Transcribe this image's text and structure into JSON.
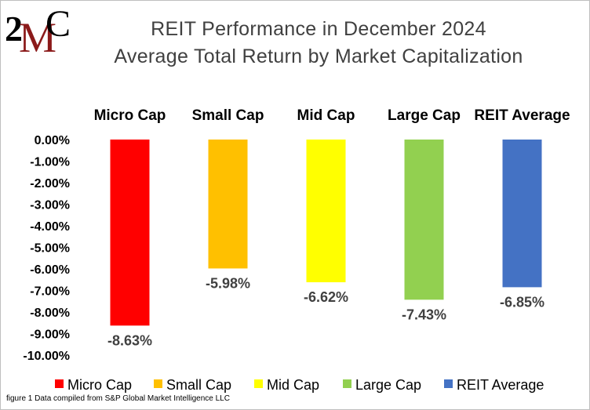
{
  "logo": {
    "text_2": "2",
    "text_m": "M",
    "text_c": "C",
    "colors": {
      "ink": "#000000",
      "accent": "#8b1a1a"
    }
  },
  "title_line1": "REIT Performance  in December 2024",
  "title_line2": "Average Total Return by Market Capitalization",
  "caption": "figure 1 Data compiled from S&P Global Market Intelligence LLC",
  "chart_data": {
    "type": "bar",
    "title": "REIT Performance  in December 2024 Average Total Return by Market Capitalization",
    "categories": [
      "Micro Cap",
      "Small Cap",
      "Mid Cap",
      "Large Cap",
      "REIT Average"
    ],
    "values": [
      -8.63,
      -5.98,
      -6.62,
      -7.43,
      -6.85
    ],
    "data_labels": [
      "-8.63%",
      "-5.98%",
      "-6.62%",
      "-7.43%",
      "-6.85%"
    ],
    "colors": [
      "#ff0000",
      "#ffc000",
      "#ffff00",
      "#92d050",
      "#4472c4"
    ],
    "ylim": [
      -10,
      0
    ],
    "yticks": [
      "0.00%",
      "-1.00%",
      "-2.00%",
      "-3.00%",
      "-4.00%",
      "-5.00%",
      "-6.00%",
      "-7.00%",
      "-8.00%",
      "-9.00%",
      "-10.00%"
    ],
    "category_labels_position": "top",
    "grid": false,
    "legend": {
      "position": "bottom",
      "entries": [
        "Micro Cap",
        "Small Cap",
        "Mid Cap",
        "Large Cap",
        "REIT Average"
      ]
    }
  }
}
